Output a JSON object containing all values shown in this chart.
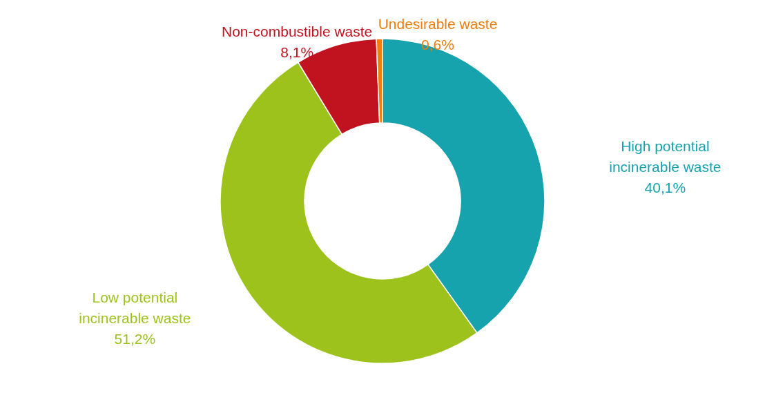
{
  "chart_data": {
    "type": "donut",
    "categories": [
      "High potential incinerable waste",
      "Low potential incinerable waste",
      "Non-combustible waste",
      "Undesirable waste"
    ],
    "values": [
      40.1,
      51.2,
      8.1,
      0.6
    ],
    "colors": [
      "#17a3ae",
      "#9dc21b",
      "#c1121f",
      "#f07c0c"
    ],
    "value_labels": [
      "40,1%",
      "51,2%",
      "8,1%",
      "0,6%"
    ]
  }
}
